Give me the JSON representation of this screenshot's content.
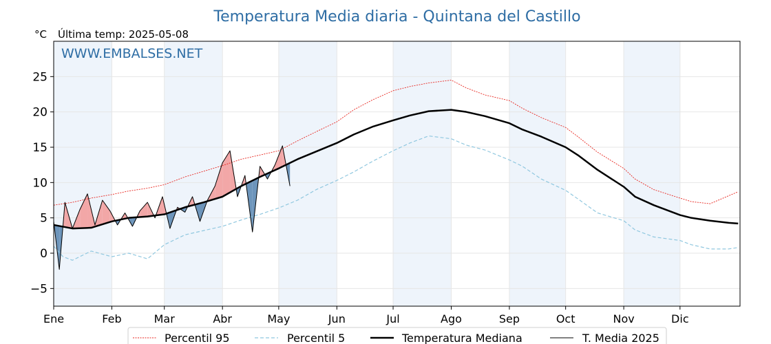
{
  "chart_data": {
    "type": "line",
    "title": "Temperatura Media diaria - Quintana del Castillo",
    "unit_label": "°C",
    "last_temp_label": "Última temp: 2025-05-08",
    "watermark": "WWW.EMBALSES.NET",
    "xlim": [
      0,
      366
    ],
    "ylim": [
      -7.5,
      30
    ],
    "y_ticks": [
      -5,
      0,
      5,
      10,
      15,
      20,
      25
    ],
    "month_ticks": [
      {
        "label": "Ene",
        "day": 0
      },
      {
        "label": "Feb",
        "day": 31
      },
      {
        "label": "Mar",
        "day": 59
      },
      {
        "label": "Abr",
        "day": 90
      },
      {
        "label": "May",
        "day": 120
      },
      {
        "label": "Jun",
        "day": 151
      },
      {
        "label": "Jul",
        "day": 181
      },
      {
        "label": "Ago",
        "day": 212
      },
      {
        "label": "Sep",
        "day": 243
      },
      {
        "label": "Oct",
        "day": 273
      },
      {
        "label": "Nov",
        "day": 304
      },
      {
        "label": "Dic",
        "day": 334
      }
    ],
    "shaded_month_bands": [
      [
        0,
        31
      ],
      [
        59,
        90
      ],
      [
        120,
        151
      ],
      [
        181,
        212
      ],
      [
        243,
        273
      ],
      [
        304,
        334
      ]
    ],
    "grid": true,
    "legend_position": "bottom-center",
    "colors": {
      "p95": "#e8261f",
      "p5": "#8fc7df",
      "median": "#000000",
      "t2025": "#000000",
      "above_fill": "#f2a7a7",
      "below_fill": "#6d95bb",
      "title": "#2e6da4",
      "band": "#eef4fb"
    },
    "series": [
      {
        "key": "p95",
        "name": "Percentil 95",
        "x": [
          0,
          10,
          20,
          31,
          40,
          50,
          59,
          70,
          80,
          90,
          100,
          110,
          120,
          130,
          140,
          151,
          160,
          170,
          181,
          190,
          200,
          212,
          220,
          230,
          243,
          250,
          260,
          273,
          280,
          290,
          304,
          310,
          320,
          334,
          340,
          350,
          365
        ],
        "y": [
          6.8,
          7.2,
          7.8,
          8.3,
          8.8,
          9.2,
          9.7,
          10.8,
          11.6,
          12.4,
          13.3,
          13.9,
          14.5,
          15.9,
          17.2,
          18.6,
          20.3,
          21.7,
          23.0,
          23.6,
          24.1,
          24.5,
          23.4,
          22.4,
          21.6,
          20.5,
          19.2,
          17.8,
          16.4,
          14.3,
          12.0,
          10.5,
          9.0,
          7.8,
          7.3,
          7.0,
          8.7
        ]
      },
      {
        "key": "p5",
        "name": "Percentil 5",
        "x": [
          0,
          5,
          10,
          20,
          31,
          40,
          50,
          59,
          70,
          80,
          90,
          100,
          110,
          120,
          130,
          140,
          151,
          160,
          170,
          181,
          190,
          200,
          212,
          220,
          230,
          243,
          250,
          260,
          273,
          280,
          290,
          304,
          310,
          320,
          334,
          340,
          350,
          360,
          365
        ],
        "y": [
          1.0,
          -0.5,
          -1.0,
          0.3,
          -0.5,
          0.0,
          -0.8,
          1.2,
          2.6,
          3.2,
          3.8,
          4.7,
          5.5,
          6.4,
          7.5,
          9.0,
          10.3,
          11.5,
          13.0,
          14.5,
          15.6,
          16.6,
          16.2,
          15.3,
          14.6,
          13.2,
          12.3,
          10.5,
          8.9,
          7.6,
          5.7,
          4.6,
          3.3,
          2.3,
          1.8,
          1.2,
          0.6,
          0.6,
          0.8
        ]
      },
      {
        "key": "median",
        "name": "Temperatura Mediana",
        "x": [
          0,
          10,
          20,
          31,
          40,
          50,
          59,
          70,
          80,
          90,
          100,
          110,
          120,
          130,
          140,
          151,
          160,
          170,
          181,
          190,
          200,
          212,
          220,
          230,
          243,
          250,
          260,
          273,
          280,
          290,
          304,
          310,
          320,
          334,
          340,
          350,
          360,
          365
        ],
        "y": [
          4.0,
          3.5,
          3.6,
          4.5,
          5.0,
          5.2,
          5.5,
          6.5,
          7.2,
          8.0,
          9.5,
          10.8,
          12.0,
          13.3,
          14.4,
          15.6,
          16.8,
          17.9,
          18.8,
          19.5,
          20.1,
          20.3,
          20.0,
          19.4,
          18.4,
          17.5,
          16.5,
          15.0,
          13.8,
          11.8,
          9.4,
          8.0,
          6.8,
          5.4,
          5.0,
          4.6,
          4.3,
          4.2
        ]
      },
      {
        "key": "t2025",
        "name": "T. Media 2025",
        "x": [
          0,
          3,
          6,
          10,
          14,
          18,
          22,
          26,
          30,
          34,
          38,
          42,
          46,
          50,
          54,
          58,
          62,
          66,
          70,
          74,
          78,
          82,
          86,
          90,
          94,
          98,
          102,
          106,
          110,
          114,
          118,
          122,
          126
        ],
        "y": [
          4.5,
          -2.3,
          7.2,
          3.5,
          6.2,
          8.4,
          4.0,
          7.5,
          6.0,
          4.0,
          5.7,
          3.8,
          6.0,
          7.2,
          5.0,
          8.0,
          3.5,
          6.5,
          5.8,
          8.0,
          4.5,
          7.5,
          9.5,
          12.8,
          14.5,
          8.0,
          11.0,
          3.0,
          12.3,
          10.5,
          12.5,
          15.2,
          9.5
        ]
      }
    ]
  }
}
